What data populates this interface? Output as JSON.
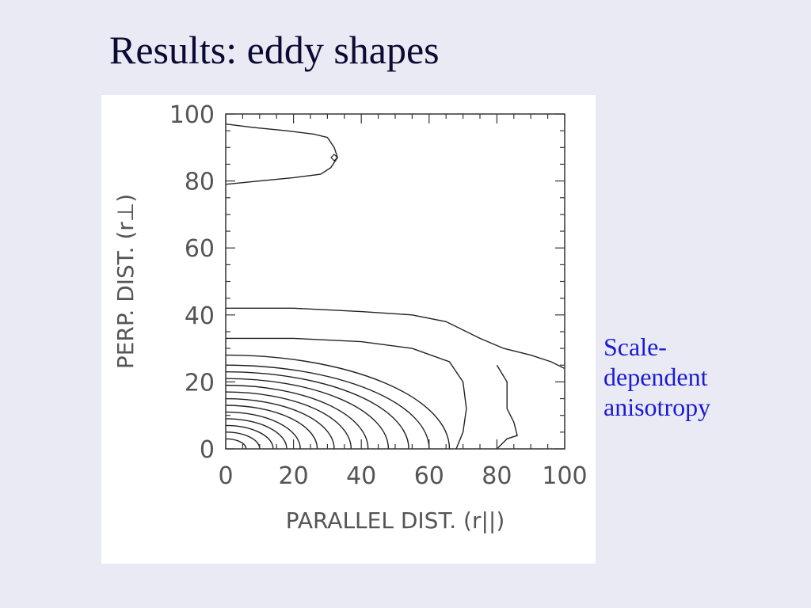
{
  "slide": {
    "title": "Results: eddy shapes",
    "note_lines": [
      "Scale-",
      "dependent",
      "anisotropy"
    ],
    "note_color": "#1a1ad6",
    "title_color": "#0a0a33",
    "background": "#eaeaf4"
  },
  "chart_data": {
    "type": "contour",
    "xlabel": "PARALLEL DIST. (r||)",
    "ylabel": "PERP. DIST. (r⊥)",
    "xlim": [
      0,
      100
    ],
    "ylim": [
      0,
      100
    ],
    "x_ticks": [
      0,
      20,
      40,
      60,
      80,
      100
    ],
    "y_ticks": [
      0,
      20,
      40,
      60,
      80,
      100
    ],
    "grid": false,
    "legend": "none",
    "ellipse_contours": [
      {
        "a": 6,
        "b": 3
      },
      {
        "a": 10,
        "b": 5
      },
      {
        "a": 14,
        "b": 7
      },
      {
        "a": 18,
        "b": 9
      },
      {
        "a": 22,
        "b": 11
      },
      {
        "a": 27,
        "b": 13
      },
      {
        "a": 32,
        "b": 15
      },
      {
        "a": 37,
        "b": 17
      },
      {
        "a": 42,
        "b": 19
      },
      {
        "a": 48,
        "b": 21
      },
      {
        "a": 54,
        "b": 23
      },
      {
        "a": 60,
        "b": 25
      },
      {
        "a": 66,
        "b": 28
      }
    ],
    "open_contours": [
      {
        "points": [
          [
            0,
            33
          ],
          [
            20,
            33
          ],
          [
            40,
            32
          ],
          [
            55,
            30
          ],
          [
            66,
            26
          ],
          [
            70,
            20
          ],
          [
            71,
            12
          ],
          [
            70,
            5
          ],
          [
            68,
            0
          ]
        ]
      },
      {
        "points": [
          [
            0,
            42
          ],
          [
            20,
            42
          ],
          [
            40,
            41
          ],
          [
            55,
            40
          ],
          [
            65,
            38
          ],
          [
            75,
            33
          ],
          [
            82,
            30
          ],
          [
            90,
            28
          ],
          [
            96,
            26
          ],
          [
            100,
            24
          ]
        ]
      },
      {
        "points": [
          [
            80,
            0
          ],
          [
            83,
            3
          ],
          [
            86,
            4
          ],
          [
            85,
            8
          ],
          [
            83,
            12
          ],
          [
            83,
            20
          ],
          [
            80,
            25
          ]
        ]
      }
    ],
    "island_contour": {
      "points": [
        [
          0,
          97
        ],
        [
          8,
          96
        ],
        [
          18,
          95
        ],
        [
          26,
          94
        ],
        [
          30,
          93
        ],
        [
          32,
          90
        ],
        [
          33,
          87
        ],
        [
          31,
          84
        ],
        [
          28,
          82
        ],
        [
          20,
          81
        ],
        [
          10,
          80
        ],
        [
          0,
          79
        ]
      ]
    },
    "markers": [
      [
        32,
        87
      ]
    ]
  }
}
